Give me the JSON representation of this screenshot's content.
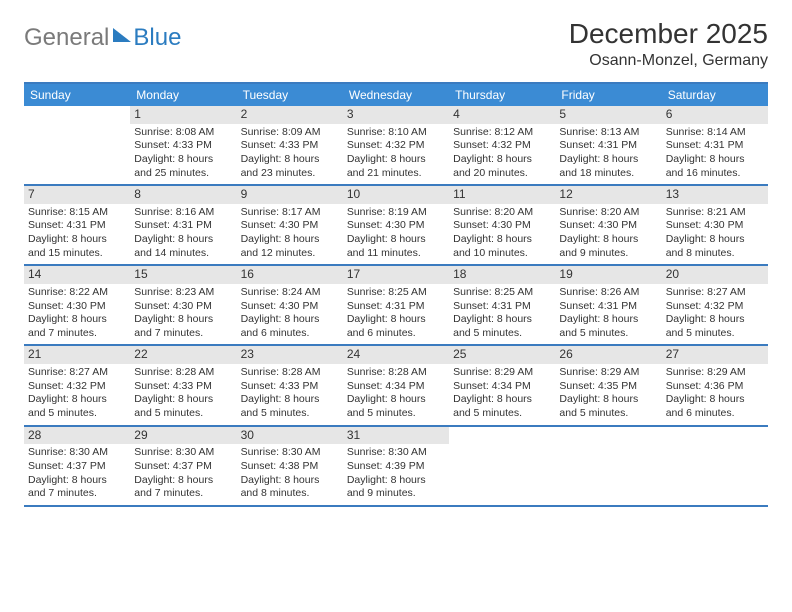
{
  "brand": {
    "part1": "General",
    "part2": "Blue"
  },
  "title": "December 2025",
  "location": "Osann-Monzel, Germany",
  "colors": {
    "header_bar": "#3b8bd4",
    "rule": "#3b7bbf",
    "daynum_bg": "#e6e6e6",
    "logo_grey": "#7a7a7a",
    "logo_blue": "#2b7cc0"
  },
  "dow": [
    "Sunday",
    "Monday",
    "Tuesday",
    "Wednesday",
    "Thursday",
    "Friday",
    "Saturday"
  ],
  "first_weekday_index": 1,
  "days": [
    {
      "n": 1,
      "sunrise": "8:08 AM",
      "sunset": "4:33 PM",
      "daylight": "8 hours and 25 minutes."
    },
    {
      "n": 2,
      "sunrise": "8:09 AM",
      "sunset": "4:33 PM",
      "daylight": "8 hours and 23 minutes."
    },
    {
      "n": 3,
      "sunrise": "8:10 AM",
      "sunset": "4:32 PM",
      "daylight": "8 hours and 21 minutes."
    },
    {
      "n": 4,
      "sunrise": "8:12 AM",
      "sunset": "4:32 PM",
      "daylight": "8 hours and 20 minutes."
    },
    {
      "n": 5,
      "sunrise": "8:13 AM",
      "sunset": "4:31 PM",
      "daylight": "8 hours and 18 minutes."
    },
    {
      "n": 6,
      "sunrise": "8:14 AM",
      "sunset": "4:31 PM",
      "daylight": "8 hours and 16 minutes."
    },
    {
      "n": 7,
      "sunrise": "8:15 AM",
      "sunset": "4:31 PM",
      "daylight": "8 hours and 15 minutes."
    },
    {
      "n": 8,
      "sunrise": "8:16 AM",
      "sunset": "4:31 PM",
      "daylight": "8 hours and 14 minutes."
    },
    {
      "n": 9,
      "sunrise": "8:17 AM",
      "sunset": "4:30 PM",
      "daylight": "8 hours and 12 minutes."
    },
    {
      "n": 10,
      "sunrise": "8:19 AM",
      "sunset": "4:30 PM",
      "daylight": "8 hours and 11 minutes."
    },
    {
      "n": 11,
      "sunrise": "8:20 AM",
      "sunset": "4:30 PM",
      "daylight": "8 hours and 10 minutes."
    },
    {
      "n": 12,
      "sunrise": "8:20 AM",
      "sunset": "4:30 PM",
      "daylight": "8 hours and 9 minutes."
    },
    {
      "n": 13,
      "sunrise": "8:21 AM",
      "sunset": "4:30 PM",
      "daylight": "8 hours and 8 minutes."
    },
    {
      "n": 14,
      "sunrise": "8:22 AM",
      "sunset": "4:30 PM",
      "daylight": "8 hours and 7 minutes."
    },
    {
      "n": 15,
      "sunrise": "8:23 AM",
      "sunset": "4:30 PM",
      "daylight": "8 hours and 7 minutes."
    },
    {
      "n": 16,
      "sunrise": "8:24 AM",
      "sunset": "4:30 PM",
      "daylight": "8 hours and 6 minutes."
    },
    {
      "n": 17,
      "sunrise": "8:25 AM",
      "sunset": "4:31 PM",
      "daylight": "8 hours and 6 minutes."
    },
    {
      "n": 18,
      "sunrise": "8:25 AM",
      "sunset": "4:31 PM",
      "daylight": "8 hours and 5 minutes."
    },
    {
      "n": 19,
      "sunrise": "8:26 AM",
      "sunset": "4:31 PM",
      "daylight": "8 hours and 5 minutes."
    },
    {
      "n": 20,
      "sunrise": "8:27 AM",
      "sunset": "4:32 PM",
      "daylight": "8 hours and 5 minutes."
    },
    {
      "n": 21,
      "sunrise": "8:27 AM",
      "sunset": "4:32 PM",
      "daylight": "8 hours and 5 minutes."
    },
    {
      "n": 22,
      "sunrise": "8:28 AM",
      "sunset": "4:33 PM",
      "daylight": "8 hours and 5 minutes."
    },
    {
      "n": 23,
      "sunrise": "8:28 AM",
      "sunset": "4:33 PM",
      "daylight": "8 hours and 5 minutes."
    },
    {
      "n": 24,
      "sunrise": "8:28 AM",
      "sunset": "4:34 PM",
      "daylight": "8 hours and 5 minutes."
    },
    {
      "n": 25,
      "sunrise": "8:29 AM",
      "sunset": "4:34 PM",
      "daylight": "8 hours and 5 minutes."
    },
    {
      "n": 26,
      "sunrise": "8:29 AM",
      "sunset": "4:35 PM",
      "daylight": "8 hours and 5 minutes."
    },
    {
      "n": 27,
      "sunrise": "8:29 AM",
      "sunset": "4:36 PM",
      "daylight": "8 hours and 6 minutes."
    },
    {
      "n": 28,
      "sunrise": "8:30 AM",
      "sunset": "4:37 PM",
      "daylight": "8 hours and 7 minutes."
    },
    {
      "n": 29,
      "sunrise": "8:30 AM",
      "sunset": "4:37 PM",
      "daylight": "8 hours and 7 minutes."
    },
    {
      "n": 30,
      "sunrise": "8:30 AM",
      "sunset": "4:38 PM",
      "daylight": "8 hours and 8 minutes."
    },
    {
      "n": 31,
      "sunrise": "8:30 AM",
      "sunset": "4:39 PM",
      "daylight": "8 hours and 9 minutes."
    }
  ],
  "labels": {
    "sunrise": "Sunrise:",
    "sunset": "Sunset:",
    "daylight": "Daylight:"
  }
}
